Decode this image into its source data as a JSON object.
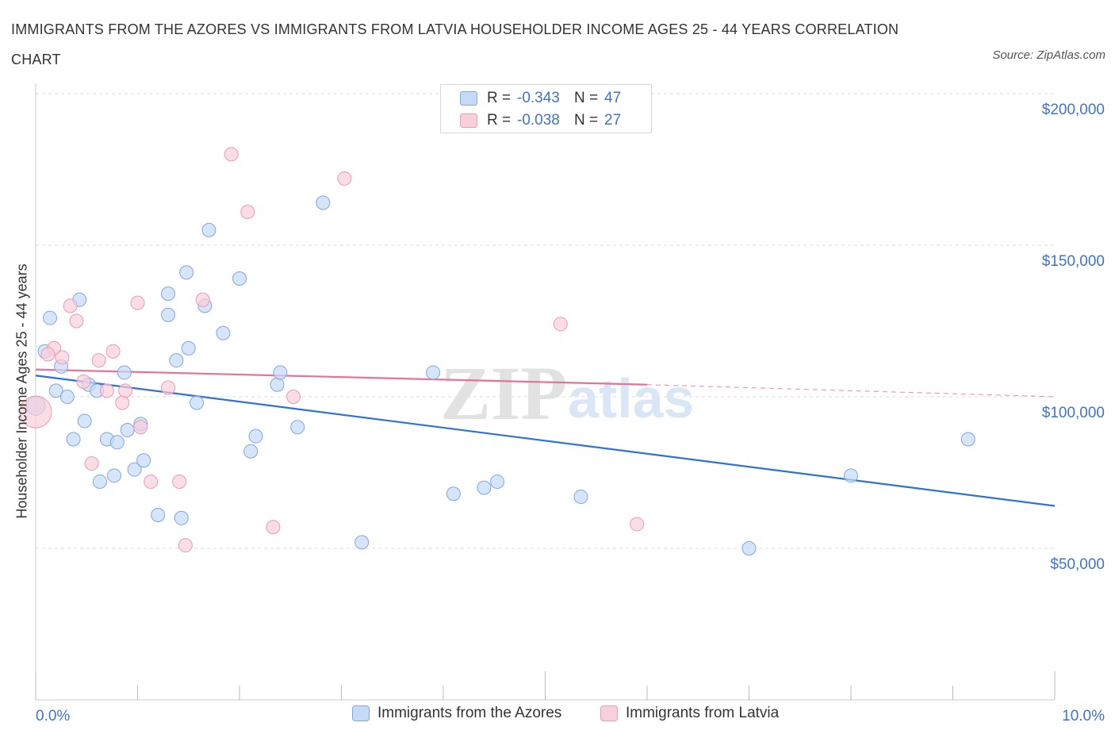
{
  "header": {
    "title": "IMMIGRANTS FROM THE AZORES VS IMMIGRANTS FROM LATVIA HOUSEHOLDER INCOME AGES 25 - 44 YEARS CORRELATION CHART",
    "source": "Source: ZipAtlas.com"
  },
  "watermark": {
    "zip": "ZIP",
    "atlas": "atlas"
  },
  "stats": {
    "azores": {
      "r_label": "R =",
      "r_value": "-0.343",
      "n_label": "N =",
      "n_value": "47"
    },
    "latvia": {
      "r_label": "R =",
      "r_value": "-0.038",
      "n_label": "N =",
      "n_value": "27"
    }
  },
  "legend": {
    "azores": "Immigrants from the Azores",
    "latvia": "Immigrants from Latvia"
  },
  "colors": {
    "azores_fill": "#c5daf6",
    "azores_stroke": "#7fa8e0",
    "azores_line": "#2e72d2",
    "latvia_fill": "#f9cfdc",
    "latvia_stroke": "#ec9ab5",
    "latvia_line": "#e8709a",
    "tick_label": "#3f74c9",
    "grid": "#dddddd"
  },
  "chart_data": {
    "type": "scatter",
    "title": "IMMIGRANTS FROM THE AZORES VS IMMIGRANTS FROM LATVIA HOUSEHOLDER INCOME AGES 25 - 44 YEARS CORRELATION CHART",
    "xlabel": "",
    "ylabel": "Householder Income Ages 25 - 44 years",
    "xlim": [
      0,
      10
    ],
    "ylim": [
      0,
      200000
    ],
    "x_tick_labels": [
      "0.0%",
      "10.0%"
    ],
    "y_ticks": [
      50000,
      100000,
      150000,
      200000
    ],
    "y_tick_labels": [
      "$50,000",
      "$100,000",
      "$150,000",
      "$200,000"
    ],
    "grid": true,
    "legend_position": "bottom",
    "series": [
      {
        "name": "Immigrants from the Azores",
        "points": [
          [
            0.0,
            97000
          ],
          [
            0.09,
            115000
          ],
          [
            0.14,
            126000
          ],
          [
            0.2,
            102000
          ],
          [
            0.25,
            110000
          ],
          [
            0.31,
            100000
          ],
          [
            0.37,
            86000
          ],
          [
            0.43,
            132000
          ],
          [
            0.48,
            92000
          ],
          [
            0.52,
            104000
          ],
          [
            0.6,
            102000
          ],
          [
            0.63,
            72000
          ],
          [
            0.7,
            86000
          ],
          [
            0.77,
            74000
          ],
          [
            0.8,
            85000
          ],
          [
            0.87,
            108000
          ],
          [
            0.9,
            89000
          ],
          [
            0.97,
            76000
          ],
          [
            1.03,
            91000
          ],
          [
            1.06,
            79000
          ],
          [
            1.2,
            61000
          ],
          [
            1.3,
            127000
          ],
          [
            1.3,
            134000
          ],
          [
            1.38,
            112000
          ],
          [
            1.43,
            60000
          ],
          [
            1.48,
            141000
          ],
          [
            1.5,
            116000
          ],
          [
            1.58,
            98000
          ],
          [
            1.66,
            130000
          ],
          [
            1.7,
            155000
          ],
          [
            1.84,
            121000
          ],
          [
            2.0,
            139000
          ],
          [
            2.11,
            82000
          ],
          [
            2.16,
            87000
          ],
          [
            2.37,
            104000
          ],
          [
            2.4,
            108000
          ],
          [
            2.57,
            90000
          ],
          [
            2.82,
            164000
          ],
          [
            3.2,
            52000
          ],
          [
            3.9,
            108000
          ],
          [
            4.1,
            68000
          ],
          [
            4.4,
            70000
          ],
          [
            4.53,
            72000
          ],
          [
            5.35,
            67000
          ],
          [
            7.0,
            50000
          ],
          [
            8.0,
            74000
          ],
          [
            9.15,
            86000
          ]
        ]
      },
      {
        "name": "Immigrants from Latvia",
        "points": [
          [
            0.0,
            95000
          ],
          [
            0.18,
            116000
          ],
          [
            0.26,
            113000
          ],
          [
            0.34,
            130000
          ],
          [
            0.4,
            125000
          ],
          [
            0.47,
            105000
          ],
          [
            0.55,
            78000
          ],
          [
            0.62,
            112000
          ],
          [
            0.7,
            102000
          ],
          [
            0.76,
            115000
          ],
          [
            0.85,
            98000
          ],
          [
            0.88,
            102000
          ],
          [
            1.0,
            131000
          ],
          [
            1.03,
            90000
          ],
          [
            1.13,
            72000
          ],
          [
            1.3,
            103000
          ],
          [
            1.41,
            72000
          ],
          [
            1.47,
            51000
          ],
          [
            1.64,
            132000
          ],
          [
            1.92,
            180000
          ],
          [
            2.08,
            161000
          ],
          [
            2.33,
            57000
          ],
          [
            2.53,
            100000
          ],
          [
            3.03,
            172000
          ],
          [
            5.15,
            124000
          ],
          [
            5.9,
            58000
          ],
          [
            0.12,
            114000
          ]
        ]
      }
    ],
    "trendlines": [
      {
        "name": "Immigrants from the Azores",
        "from": [
          0.0,
          107000
        ],
        "to": [
          10.0,
          64000
        ]
      },
      {
        "name": "Immigrants from Latvia",
        "from": [
          0.0,
          109000
        ],
        "to": [
          6.0,
          104000
        ],
        "dashed_to": [
          10.0,
          100000
        ]
      }
    ]
  }
}
